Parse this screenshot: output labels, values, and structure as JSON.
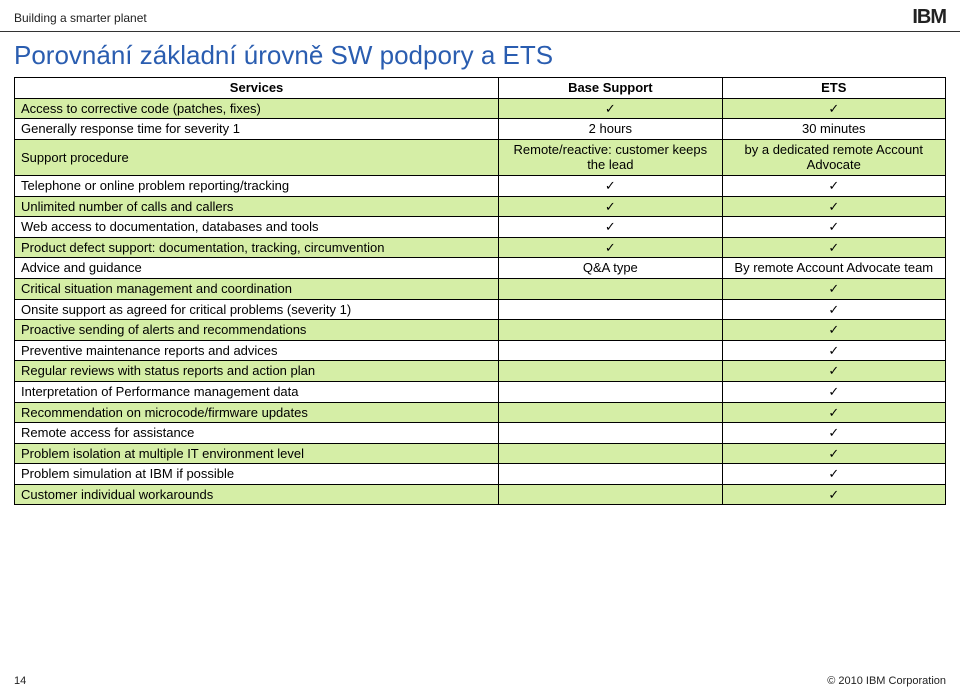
{
  "header": {
    "tagline": "Building a smarter planet",
    "logo_text": "IBM"
  },
  "title": "Porovnání základní úrovně SW podpory a ETS",
  "table": {
    "columns": [
      "Services",
      "Base Support",
      "ETS"
    ],
    "check": "✓",
    "rows": [
      {
        "svc": "Access to corrective code (patches, fixes)",
        "base": "✓",
        "ets": "✓",
        "green": true
      },
      {
        "svc": "Generally response time for severity 1",
        "base": "2 hours",
        "ets": "30 minutes",
        "green": false
      },
      {
        "svc": "Support procedure",
        "base": "Remote/reactive: customer keeps the lead",
        "ets": "by a dedicated remote Account Advocate",
        "green": true
      },
      {
        "svc": "Telephone or online problem reporting/tracking",
        "base": "✓",
        "ets": "✓",
        "green": false
      },
      {
        "svc": "Unlimited number of calls and callers",
        "base": "✓",
        "ets": "✓",
        "green": true
      },
      {
        "svc": "Web access to documentation, databases and tools",
        "base": "✓",
        "ets": "✓",
        "green": false
      },
      {
        "svc": "Product defect support: documentation, tracking, circumvention",
        "base": "✓",
        "ets": "✓",
        "green": true
      },
      {
        "svc": "Advice and guidance",
        "base": "Q&A type",
        "ets": "By remote Account Advocate team",
        "green": false
      },
      {
        "svc": "Critical situation management and coordination",
        "base": "",
        "ets": "✓",
        "green": true
      },
      {
        "svc": "Onsite support as agreed for critical problems (severity 1)",
        "base": "",
        "ets": "✓",
        "green": false
      },
      {
        "svc": "Proactive sending of alerts and recommendations",
        "base": "",
        "ets": "✓",
        "green": true
      },
      {
        "svc": "Preventive maintenance reports and advices",
        "base": "",
        "ets": "✓",
        "green": false
      },
      {
        "svc": "Regular reviews with status reports and action plan",
        "base": "",
        "ets": "✓",
        "green": true
      },
      {
        "svc": "Interpretation of Performance management data",
        "base": "",
        "ets": "✓",
        "green": false
      },
      {
        "svc": "Recommendation on microcode/firmware updates",
        "base": "",
        "ets": "✓",
        "green": true
      },
      {
        "svc": "Remote access for assistance",
        "base": "",
        "ets": "✓",
        "green": false
      },
      {
        "svc": "Problem isolation at multiple IT environment level",
        "base": "",
        "ets": "✓",
        "green": true
      },
      {
        "svc": "Problem simulation at IBM if possible",
        "base": "",
        "ets": "✓",
        "green": false
      },
      {
        "svc": "Customer individual workarounds",
        "base": "",
        "ets": "✓",
        "green": true
      }
    ]
  },
  "footer": {
    "page_number": "14",
    "copyright": "© 2010 IBM Corporation"
  }
}
